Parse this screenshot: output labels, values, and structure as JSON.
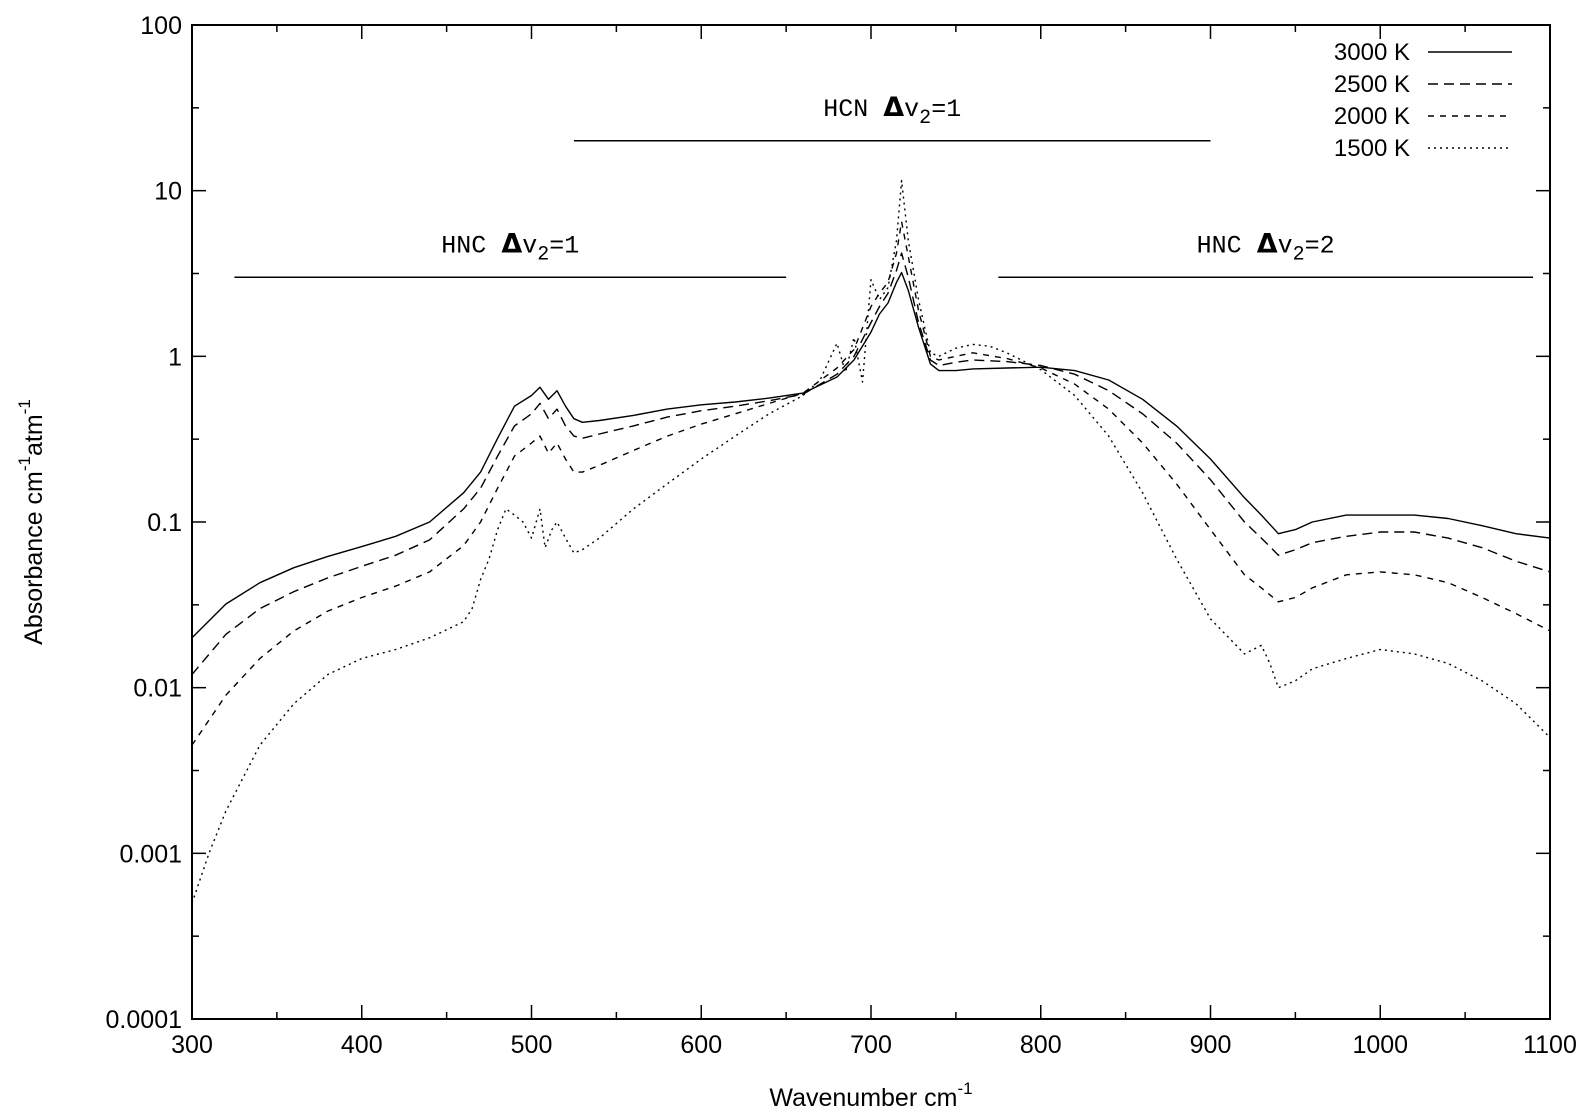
{
  "chart_data": {
    "type": "line",
    "title": "",
    "xlabel": "Wavenumber cm",
    "xlabel_sup": "-1",
    "ylabel_parts": [
      "Absorbance cm",
      "-1",
      "atm",
      "-1"
    ],
    "xlim": [
      300,
      1100
    ],
    "ylim": [
      0.0001,
      100
    ],
    "yscale": "log",
    "grid": false,
    "legend_position": "top-right",
    "x_ticks": [
      300,
      400,
      500,
      600,
      700,
      800,
      900,
      1000,
      1100
    ],
    "x_tick_labels": [
      "300",
      "400",
      "500",
      "600",
      "700",
      "800",
      "900",
      "1000",
      "1100"
    ],
    "y_ticks": [
      0.0001,
      0.001,
      0.01,
      0.1,
      1,
      10,
      100
    ],
    "y_tick_labels": [
      "0.0001",
      "0.001",
      "0.01",
      "0.1",
      "1",
      "10",
      "100"
    ],
    "annotations": [
      {
        "molecule": "HCN",
        "delta": "Δ",
        "v": "v",
        "sub": "2",
        "eq": "=1",
        "x_range": [
          525,
          900
        ],
        "y": 20
      },
      {
        "molecule": "HNC",
        "delta": "Δ",
        "v": "v",
        "sub": "2",
        "eq": "=1",
        "x_range": [
          325,
          650
        ],
        "y": 3
      },
      {
        "molecule": "HNC",
        "delta": "Δ",
        "v": "v",
        "sub": "2",
        "eq": "=2",
        "x_range": [
          775,
          1090
        ],
        "y": 3
      }
    ],
    "series": [
      {
        "name": "3000 K",
        "dash": "none",
        "x": [
          300,
          320,
          340,
          360,
          380,
          400,
          420,
          440,
          460,
          470,
          480,
          490,
          500,
          505,
          510,
          515,
          520,
          525,
          530,
          540,
          560,
          580,
          600,
          620,
          640,
          660,
          680,
          690,
          700,
          705,
          710,
          715,
          718,
          722,
          728,
          735,
          740,
          750,
          760,
          780,
          800,
          820,
          840,
          860,
          880,
          900,
          920,
          930,
          940,
          950,
          960,
          980,
          1000,
          1020,
          1040,
          1060,
          1080,
          1100
        ],
        "y": [
          0.02,
          0.032,
          0.043,
          0.053,
          0.062,
          0.071,
          0.082,
          0.1,
          0.15,
          0.2,
          0.32,
          0.5,
          0.58,
          0.65,
          0.55,
          0.62,
          0.5,
          0.42,
          0.4,
          0.41,
          0.44,
          0.48,
          0.51,
          0.53,
          0.56,
          0.6,
          0.75,
          0.95,
          1.4,
          1.8,
          2.1,
          2.8,
          3.2,
          2.5,
          1.5,
          0.9,
          0.82,
          0.82,
          0.84,
          0.85,
          0.86,
          0.82,
          0.72,
          0.55,
          0.38,
          0.24,
          0.14,
          0.11,
          0.085,
          0.09,
          0.1,
          0.11,
          0.11,
          0.11,
          0.105,
          0.095,
          0.085,
          0.08
        ]
      },
      {
        "name": "2500 K",
        "dash": "10,6",
        "x": [
          300,
          320,
          340,
          360,
          380,
          400,
          420,
          440,
          460,
          470,
          480,
          490,
          500,
          505,
          510,
          515,
          520,
          525,
          530,
          540,
          560,
          580,
          600,
          620,
          640,
          660,
          680,
          690,
          700,
          705,
          710,
          715,
          718,
          722,
          728,
          735,
          740,
          750,
          760,
          780,
          800,
          820,
          840,
          860,
          880,
          900,
          920,
          930,
          940,
          950,
          960,
          980,
          1000,
          1020,
          1040,
          1060,
          1080,
          1100
        ],
        "y": [
          0.012,
          0.021,
          0.03,
          0.038,
          0.046,
          0.054,
          0.063,
          0.078,
          0.12,
          0.16,
          0.25,
          0.38,
          0.45,
          0.52,
          0.42,
          0.48,
          0.38,
          0.33,
          0.32,
          0.34,
          0.38,
          0.43,
          0.47,
          0.5,
          0.54,
          0.59,
          0.78,
          1.0,
          1.6,
          2.0,
          2.4,
          3.3,
          4.2,
          3.0,
          1.6,
          0.95,
          0.88,
          0.92,
          0.95,
          0.93,
          0.88,
          0.78,
          0.62,
          0.45,
          0.3,
          0.18,
          0.1,
          0.08,
          0.063,
          0.068,
          0.075,
          0.082,
          0.087,
          0.087,
          0.08,
          0.07,
          0.058,
          0.05
        ]
      },
      {
        "name": "2000 K",
        "dash": "6,6",
        "x": [
          300,
          320,
          340,
          360,
          380,
          400,
          420,
          440,
          460,
          470,
          480,
          490,
          500,
          505,
          510,
          515,
          520,
          525,
          530,
          540,
          560,
          580,
          600,
          620,
          640,
          660,
          680,
          690,
          700,
          705,
          710,
          715,
          718,
          722,
          728,
          735,
          740,
          750,
          760,
          780,
          800,
          820,
          840,
          860,
          880,
          900,
          920,
          930,
          940,
          950,
          960,
          980,
          1000,
          1020,
          1040,
          1060,
          1080,
          1100
        ],
        "y": [
          0.0045,
          0.009,
          0.015,
          0.022,
          0.029,
          0.035,
          0.041,
          0.05,
          0.072,
          0.1,
          0.16,
          0.25,
          0.3,
          0.33,
          0.26,
          0.3,
          0.24,
          0.2,
          0.2,
          0.22,
          0.27,
          0.33,
          0.39,
          0.45,
          0.52,
          0.6,
          0.85,
          1.1,
          2.0,
          2.4,
          2.8,
          4.2,
          6.5,
          4.0,
          1.9,
          1.0,
          0.95,
          1.0,
          1.05,
          0.97,
          0.85,
          0.68,
          0.48,
          0.3,
          0.17,
          0.09,
          0.048,
          0.04,
          0.033,
          0.035,
          0.04,
          0.048,
          0.05,
          0.048,
          0.043,
          0.035,
          0.028,
          0.022
        ]
      },
      {
        "name": "1500 K",
        "dash": "2,4",
        "x": [
          300,
          310,
          320,
          340,
          360,
          380,
          400,
          420,
          440,
          460,
          465,
          470,
          475,
          480,
          485,
          490,
          495,
          500,
          505,
          508,
          512,
          515,
          520,
          525,
          530,
          540,
          560,
          580,
          600,
          620,
          640,
          660,
          670,
          680,
          685,
          690,
          695,
          700,
          705,
          710,
          715,
          718,
          722,
          728,
          735,
          740,
          750,
          760,
          770,
          780,
          800,
          820,
          840,
          860,
          880,
          900,
          920,
          930,
          935,
          940,
          950,
          960,
          980,
          1000,
          1020,
          1040,
          1060,
          1080,
          1100
        ],
        "y": [
          0.0005,
          0.001,
          0.0018,
          0.0045,
          0.008,
          0.012,
          0.015,
          0.017,
          0.02,
          0.025,
          0.03,
          0.045,
          0.06,
          0.09,
          0.12,
          0.11,
          0.1,
          0.08,
          0.12,
          0.07,
          0.09,
          0.1,
          0.08,
          0.065,
          0.068,
          0.08,
          0.12,
          0.17,
          0.24,
          0.33,
          0.45,
          0.58,
          0.72,
          1.2,
          0.8,
          1.3,
          0.7,
          2.9,
          2.2,
          2.6,
          5.0,
          11.5,
          5.0,
          2.2,
          1.05,
          1.0,
          1.12,
          1.18,
          1.15,
          1.05,
          0.83,
          0.58,
          0.33,
          0.15,
          0.06,
          0.026,
          0.016,
          0.018,
          0.014,
          0.01,
          0.011,
          0.013,
          0.015,
          0.017,
          0.016,
          0.014,
          0.011,
          0.008,
          0.005
        ]
      }
    ]
  }
}
